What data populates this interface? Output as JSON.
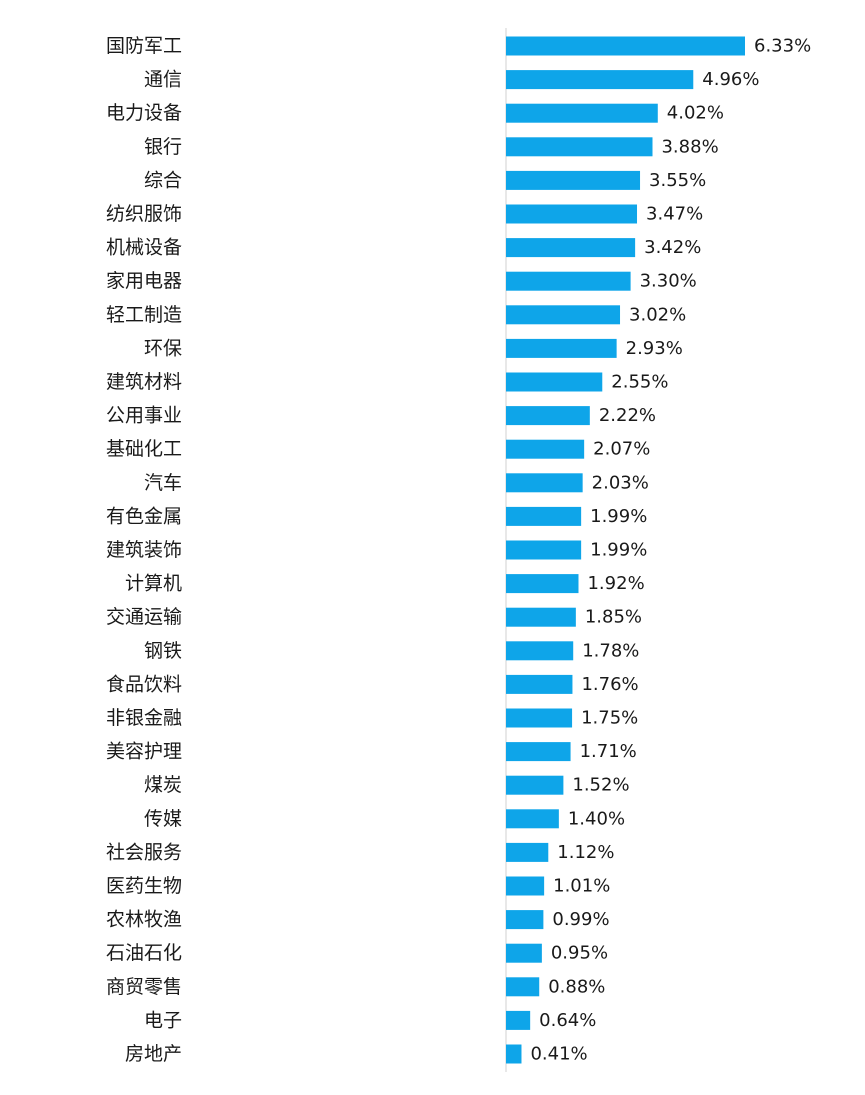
{
  "chart_data": {
    "type": "bar",
    "orientation": "horizontal",
    "categories": [
      "国防军工",
      "通信",
      "电力设备",
      "银行",
      "综合",
      "纺织服饰",
      "机械设备",
      "家用电器",
      "轻工制造",
      "环保",
      "建筑材料",
      "公用事业",
      "基础化工",
      "汽车",
      "有色金属",
      "建筑装饰",
      "计算机",
      "交通运输",
      "钢铁",
      "食品饮料",
      "非银金融",
      "美容护理",
      "煤炭",
      "传媒",
      "社会服务",
      "医药生物",
      "农林牧渔",
      "石油石化",
      "商贸零售",
      "电子",
      "房地产"
    ],
    "values": [
      6.33,
      4.96,
      4.02,
      3.88,
      3.55,
      3.47,
      3.42,
      3.3,
      3.02,
      2.93,
      2.55,
      2.22,
      2.07,
      2.03,
      1.99,
      1.99,
      1.92,
      1.85,
      1.78,
      1.76,
      1.75,
      1.71,
      1.52,
      1.4,
      1.12,
      1.01,
      0.99,
      0.95,
      0.88,
      0.64,
      0.41
    ],
    "value_labels": [
      "6.33%",
      "4.96%",
      "4.02%",
      "3.88%",
      "3.55%",
      "3.47%",
      "3.42%",
      "3.30%",
      "3.02%",
      "2.93%",
      "2.55%",
      "2.22%",
      "2.07%",
      "2.03%",
      "1.99%",
      "1.99%",
      "1.92%",
      "1.85%",
      "1.78%",
      "1.76%",
      "1.75%",
      "1.71%",
      "1.52%",
      "1.40%",
      "1.12%",
      "1.01%",
      "0.99%",
      "0.95%",
      "0.88%",
      "0.64%",
      "0.41%"
    ],
    "title": "",
    "xlabel": "",
    "ylabel": "",
    "xlim": [
      0,
      6.33
    ],
    "grid": false,
    "legend": "none",
    "colors": {
      "bar": "#0ea5e9",
      "text": "#1a1a1a",
      "axis": "#d0d0d0"
    }
  }
}
